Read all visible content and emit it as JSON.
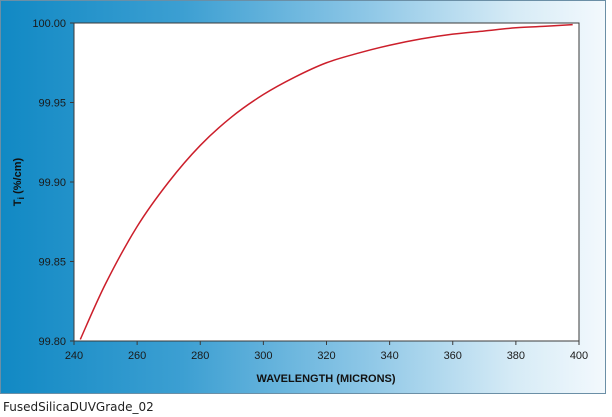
{
  "caption": "FusedSilicaDUVGrade_02",
  "chart_data": {
    "type": "line",
    "title": "",
    "xlabel": "WAVELENGTH (MICRONS)",
    "ylabel_main": "T",
    "ylabel_sub": "i",
    "ylabel_rest": " (%/cm)",
    "xlim": [
      240,
      400
    ],
    "ylim": [
      99.8,
      100.0
    ],
    "x_ticks": [
      240,
      260,
      280,
      300,
      320,
      340,
      360,
      380,
      400
    ],
    "y_ticks": [
      {
        "value": 99.8,
        "label": "99.80"
      },
      {
        "value": 99.85,
        "label": "99.85"
      },
      {
        "value": 99.9,
        "label": "99.90"
      },
      {
        "value": 99.95,
        "label": "99.95"
      },
      {
        "value": 100.0,
        "label": "100.00"
      }
    ],
    "grid": false,
    "series": [
      {
        "color": "#cc1f2b",
        "x": [
          242,
          250,
          260,
          270,
          280,
          290,
          300,
          310,
          320,
          330,
          340,
          350,
          360,
          370,
          380,
          390,
          398
        ],
        "y": [
          99.801,
          99.836,
          99.872,
          99.9,
          99.923,
          99.941,
          99.955,
          99.966,
          99.975,
          99.981,
          99.986,
          99.99,
          99.993,
          99.995,
          99.997,
          99.998,
          99.999
        ]
      }
    ]
  }
}
